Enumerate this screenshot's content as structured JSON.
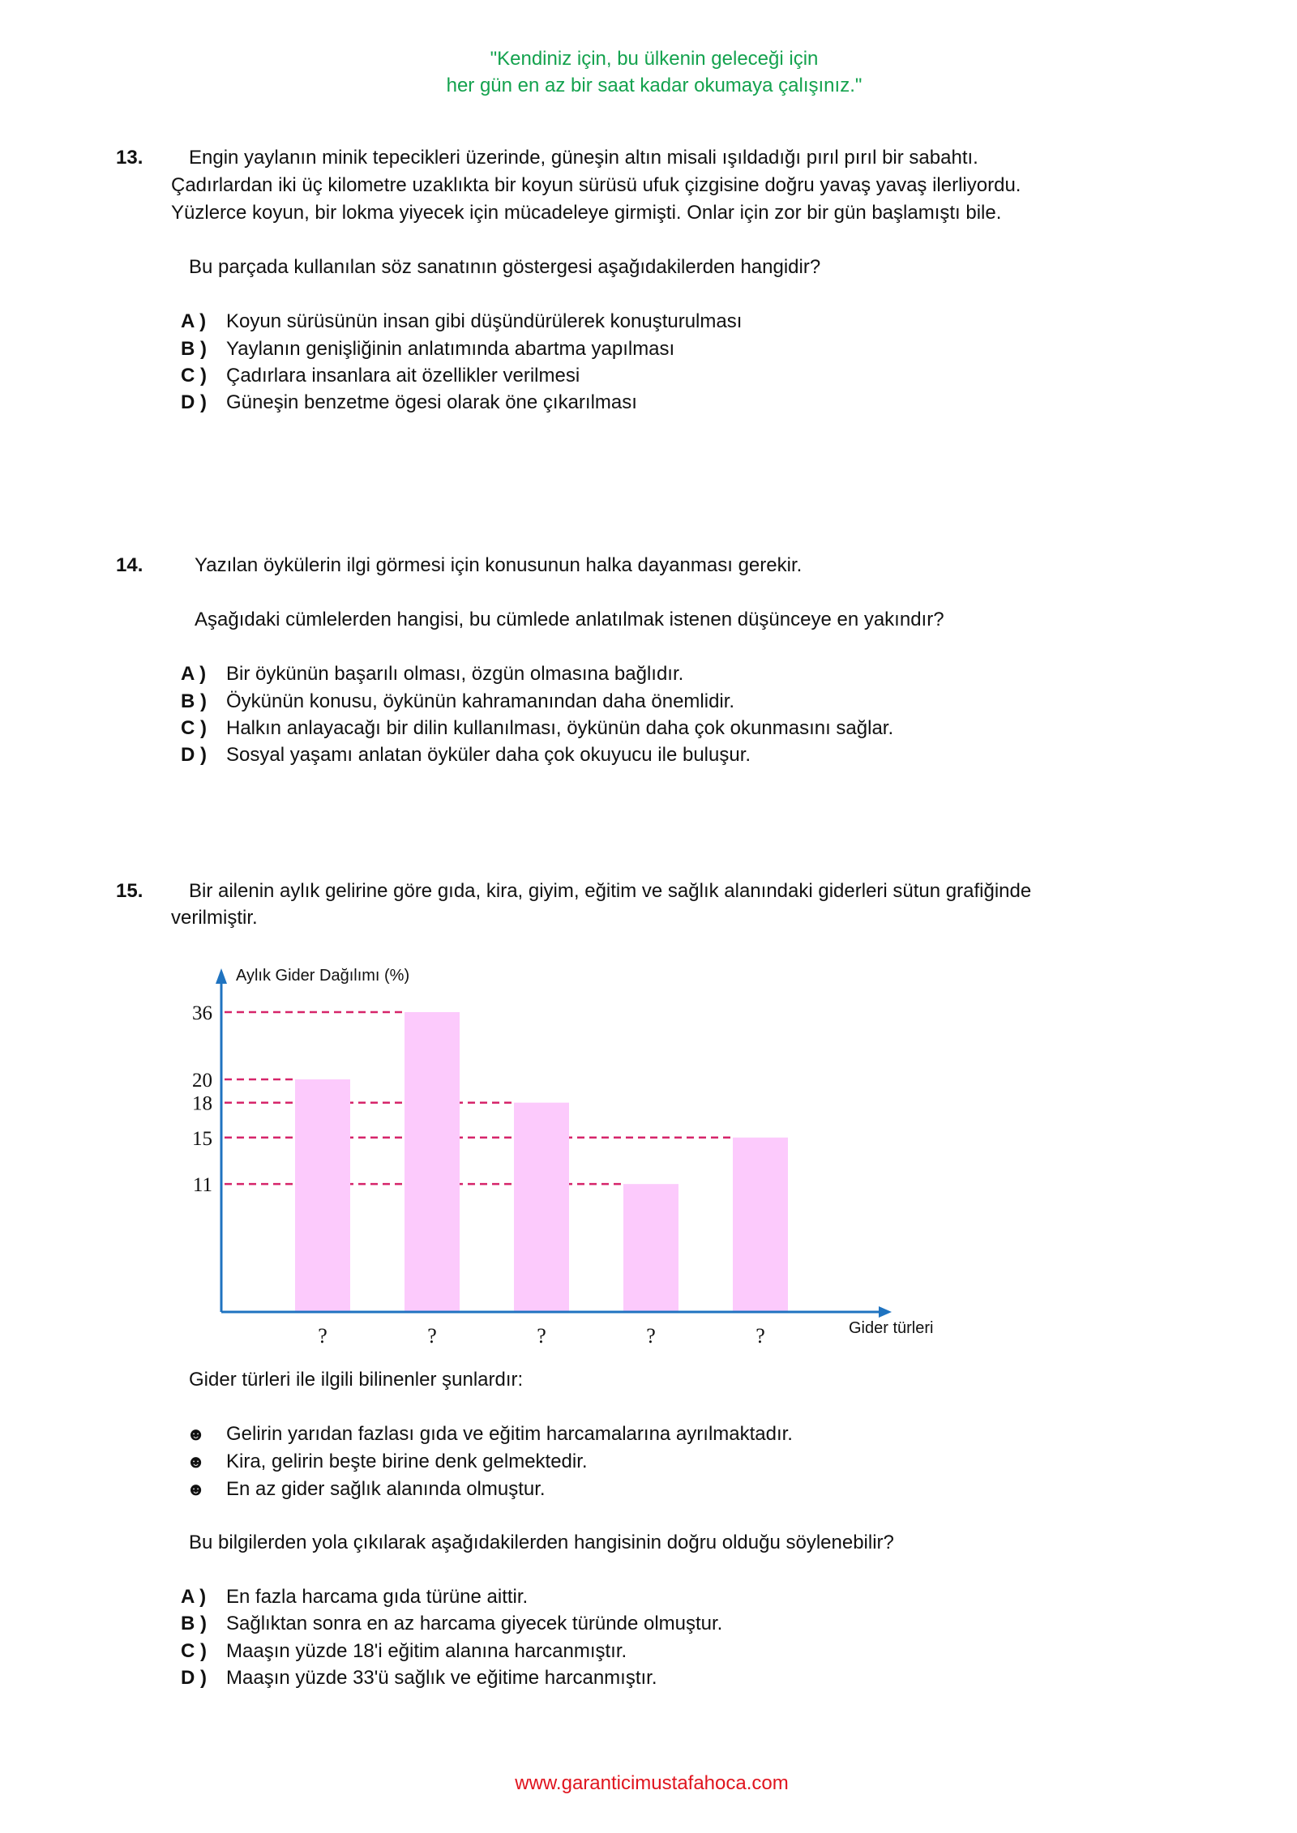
{
  "header": {
    "quote_line1": "\"Kendiniz için, bu ülkenin geleceği için",
    "quote_line2": "her gün en az bir saat kadar okumaya çalışınız.\""
  },
  "q13": {
    "number": "13.",
    "text_lines": [
      "Engin yaylanın minik tepecikleri üzerinde, güneşin altın misali ışıldadığı pırıl pırıl bir sabahtı.",
      "Çadırlardan iki üç kilometre uzaklıkta bir koyun sürüsü ufuk çizgisine doğru yavaş yavaş ilerliyordu.",
      "Yüzlerce koyun, bir lokma yiyecek için mücadeleye girmişti. Onlar için zor bir gün başlamıştı bile."
    ],
    "question": "Bu parçada kullanılan söz sanatının göstergesi aşağıdakilerden hangidir?",
    "options": [
      {
        "letter": "A )",
        "text": "Koyun sürüsünün insan gibi düşündürülerek konuşturulması"
      },
      {
        "letter": "B )",
        "text": "Yaylanın genişliğinin anlatımında abartma yapılması"
      },
      {
        "letter": "C )",
        "text": "Çadırlara insanlara ait özellikler verilmesi"
      },
      {
        "letter": "D )",
        "text": "Güneşin benzetme ögesi olarak öne çıkarılması"
      }
    ]
  },
  "q14": {
    "number": "14.",
    "text": "Yazılan öykülerin ilgi görmesi için konusunun halka dayanması gerekir.",
    "question": "Aşağıdaki cümlelerden hangisi, bu cümlede anlatılmak istenen düşünceye en yakındır?",
    "options": [
      {
        "letter": "A )",
        "text": "Bir öykünün başarılı olması, özgün olmasına bağlıdır."
      },
      {
        "letter": "B )",
        "text": "Öykünün konusu, öykünün kahramanından daha önemlidir."
      },
      {
        "letter": "C )",
        "text": "Halkın anlayacağı bir dilin kullanılması, öykünün daha çok okunmasını sağlar."
      },
      {
        "letter": "D )",
        "text": "Sosyal yaşamı anlatan öyküler daha çok okuyucu ile buluşur."
      }
    ]
  },
  "q15": {
    "number": "15.",
    "text_lines": [
      "Bir ailenin aylık gelirine göre gıda, kira, giyim, eğitim ve sağlık alanındaki giderleri sütun grafiğinde",
      "verilmiştir."
    ],
    "info_title": "Gider türleri ile ilgili bilinenler şunlardır:",
    "bullet_icon": "smiley-icon",
    "bullet_glyph": "☻",
    "bullets": [
      "Gelirin yarıdan fazlası gıda ve eğitim harcamalarına ayrılmaktadır.",
      "Kira, gelirin beşte birine denk gelmektedir.",
      "En az gider sağlık alanında olmuştur."
    ],
    "question": "Bu bilgilerden yola çıkılarak aşağıdakilerden hangisinin doğru olduğu söylenebilir?",
    "options": [
      {
        "letter": "A )",
        "text": "En fazla harcama gıda türüne aittir."
      },
      {
        "letter": "B )",
        "text": "Sağlıktan sonra en az harcama giyecek türünde olmuştur."
      },
      {
        "letter": "C )",
        "text": "Maaşın yüzde 18'i eğitim alanına harcanmıştır."
      },
      {
        "letter": "D )",
        "text": "Maaşın yüzde 33'ü sağlık ve eğitime harcanmıştır."
      }
    ]
  },
  "chart_data": {
    "type": "bar",
    "title": "",
    "ylabel": "Aylık Gider Dağılımı (%)",
    "xlabel": "Gider türleri",
    "categories": [
      "?",
      "?",
      "?",
      "?",
      "?"
    ],
    "values": [
      20,
      36,
      18,
      11,
      15
    ],
    "yticks": [
      11,
      15,
      18,
      20,
      36
    ],
    "grid": "dashed reference lines at bar heights",
    "colors": {
      "bar": "#fccafc",
      "axis": "#1f73c0",
      "reference_line": "#d6256a"
    }
  },
  "footer": {
    "url": "www.garanticimustafahoca.com"
  }
}
